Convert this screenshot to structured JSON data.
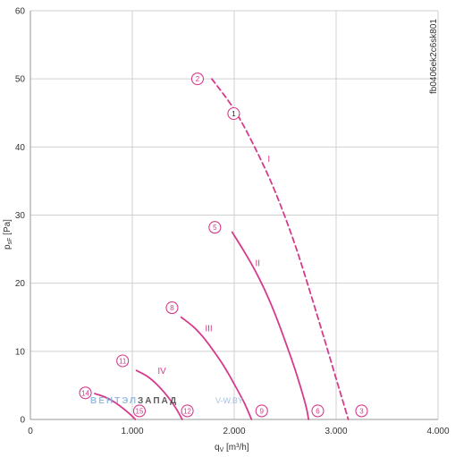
{
  "chart_data": {
    "type": "line",
    "chart_id": "fb0406ek2c6sk801",
    "xlabel": "q",
    "xlabel_sub": "V",
    "xlabel_unit": " [m³/h]",
    "ylabel": "p",
    "ylabel_sub": "sF",
    "ylabel_unit": " [Pa]",
    "xlim": [
      0,
      4000
    ],
    "ylim": [
      0,
      60
    ],
    "x_ticks": [
      {
        "value": 0,
        "label": "0"
      },
      {
        "value": 1000,
        "label": "1.000"
      },
      {
        "value": 2000,
        "label": "2.000"
      },
      {
        "value": 3000,
        "label": "3.000"
      },
      {
        "value": 4000,
        "label": "4.000"
      }
    ],
    "y_ticks": [
      {
        "value": 0,
        "label": "0"
      },
      {
        "value": 10,
        "label": "10"
      },
      {
        "value": 20,
        "label": "20"
      },
      {
        "value": 30,
        "label": "30"
      },
      {
        "value": 40,
        "label": "40"
      },
      {
        "value": 50,
        "label": "50"
      },
      {
        "value": 60,
        "label": "60"
      }
    ],
    "grid": true,
    "series": [
      {
        "name": "I",
        "style": "dashed",
        "x": [
          1780,
          2000,
          2200,
          2400,
          2600,
          2800,
          3000,
          3120
        ],
        "y": [
          50,
          45.5,
          40,
          33.5,
          25.5,
          16,
          6,
          0
        ]
      },
      {
        "name": "II",
        "style": "solid",
        "x": [
          1980,
          2100,
          2200,
          2300,
          2400,
          2500,
          2600,
          2700,
          2730
        ],
        "y": [
          27.5,
          24.6,
          22,
          19,
          15.5,
          11.5,
          7.2,
          2.2,
          0
        ]
      },
      {
        "name": "III",
        "style": "solid",
        "x": [
          1480,
          1600,
          1700,
          1800,
          1900,
          2000,
          2100,
          2170
        ],
        "y": [
          15,
          13.6,
          12,
          10,
          7.8,
          5.2,
          2.4,
          0
        ]
      },
      {
        "name": "IV",
        "style": "solid",
        "x": [
          1040,
          1150,
          1250,
          1350,
          1430,
          1490
        ],
        "y": [
          7.2,
          6.3,
          5,
          3.3,
          1.6,
          0
        ]
      },
      {
        "name": "",
        "style": "solid",
        "x": [
          630,
          730,
          830,
          920,
          990,
          1030
        ],
        "y": [
          3.8,
          3.3,
          2.5,
          1.5,
          0.6,
          0
        ]
      }
    ],
    "roman_labels": [
      {
        "text": "I",
        "x": 2340,
        "y": 37.8
      },
      {
        "text": "II",
        "x": 2230,
        "y": 22.5
      },
      {
        "text": "III",
        "x": 1750,
        "y": 12.9
      },
      {
        "text": "IV",
        "x": 1290,
        "y": 6.7
      }
    ],
    "circle_labels": [
      {
        "text": "2",
        "x": 1640,
        "y": 50
      },
      {
        "text": "1",
        "x": 1995,
        "y": 44.9,
        "style": "black"
      },
      {
        "text": "5",
        "x": 1810,
        "y": 28.2
      },
      {
        "text": "8",
        "x": 1390,
        "y": 16.4
      },
      {
        "text": "11",
        "x": 905,
        "y": 8.6
      },
      {
        "text": "14",
        "x": 540,
        "y": 3.9
      },
      {
        "text": "15",
        "x": 1070,
        "y": 1.25
      },
      {
        "text": "12",
        "x": 1540,
        "y": 1.25
      },
      {
        "text": "9",
        "x": 2270,
        "y": 1.25
      },
      {
        "text": "6",
        "x": 2820,
        "y": 1.25
      },
      {
        "text": "3",
        "x": 3250,
        "y": 1.25
      }
    ],
    "watermark": {
      "part1": "ВЕНТ",
      "part2": "ЭЛ",
      "part3": "ЗАПАД",
      "url": "V-W.BY"
    },
    "colors": {
      "curve": "#d63a8c",
      "grid": "#d0d0d0",
      "axis": "#333333"
    }
  }
}
